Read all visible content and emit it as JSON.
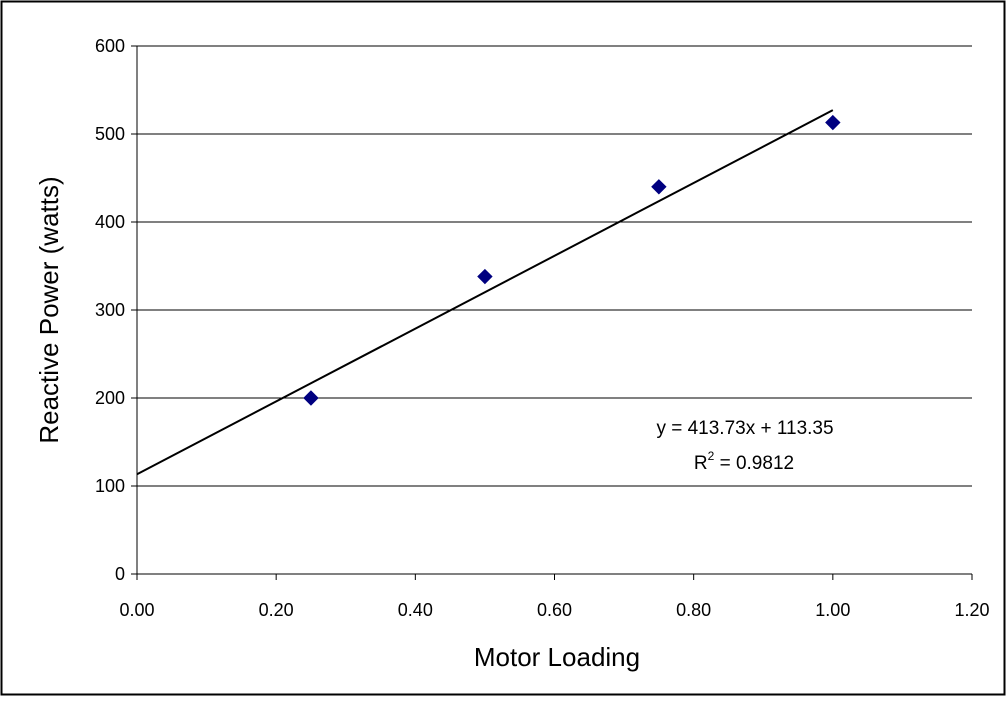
{
  "chart_data": {
    "type": "scatter",
    "title": "",
    "xlabel": "Motor Loading",
    "ylabel": "Reactive Power (watts)",
    "xlim": [
      0,
      1.2
    ],
    "ylim": [
      0,
      600
    ],
    "x_ticks": [
      "0.00",
      "0.20",
      "0.40",
      "0.60",
      "0.80",
      "1.00",
      "1.20"
    ],
    "y_ticks": [
      "0",
      "100",
      "200",
      "300",
      "400",
      "500",
      "600"
    ],
    "grid": "horizontal",
    "legend": "none",
    "series": [
      {
        "x": [
          0.25,
          0.5,
          0.75,
          1.0
        ],
        "y": [
          200,
          338,
          440,
          513
        ],
        "marker": "diamond",
        "color": "#000080"
      }
    ],
    "trendline": {
      "type": "linear",
      "slope": 413.73,
      "intercept": 113.35,
      "x_range": [
        0,
        1.0
      ],
      "equation_label": "y = 413.73x + 113.35",
      "r2_prefix": "R",
      "r2_superscript": "2",
      "r2_value": " = 0.9812",
      "color": "#000000"
    }
  }
}
